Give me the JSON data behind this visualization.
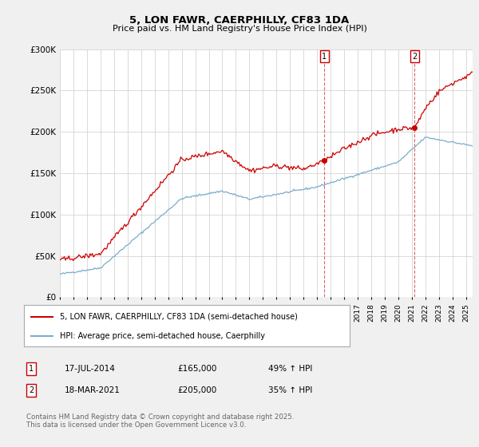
{
  "title": "5, LON FAWR, CAERPHILLY, CF83 1DA",
  "subtitle": "Price paid vs. HM Land Registry's House Price Index (HPI)",
  "ylim": [
    0,
    300000
  ],
  "yticks": [
    0,
    50000,
    100000,
    150000,
    200000,
    250000,
    300000
  ],
  "ytick_labels": [
    "£0",
    "£50K",
    "£100K",
    "£150K",
    "£200K",
    "£250K",
    "£300K"
  ],
  "line1_color": "#cc0000",
  "line2_color": "#7aadcc",
  "marker1_year": 2014.54,
  "marker2_year": 2021.21,
  "marker1_price": 165000,
  "marker2_price": 205000,
  "legend_label1": "5, LON FAWR, CAERPHILLY, CF83 1DA (semi-detached house)",
  "legend_label2": "HPI: Average price, semi-detached house, Caerphilly",
  "transaction1_date": "17-JUL-2014",
  "transaction1_price": "£165,000",
  "transaction1_hpi": "49% ↑ HPI",
  "transaction2_date": "18-MAR-2021",
  "transaction2_price": "£205,000",
  "transaction2_hpi": "35% ↑ HPI",
  "footer": "Contains HM Land Registry data © Crown copyright and database right 2025.\nThis data is licensed under the Open Government Licence v3.0.",
  "background_color": "#f0f0f0",
  "plot_bg_color": "#ffffff",
  "grid_color": "#cccccc"
}
